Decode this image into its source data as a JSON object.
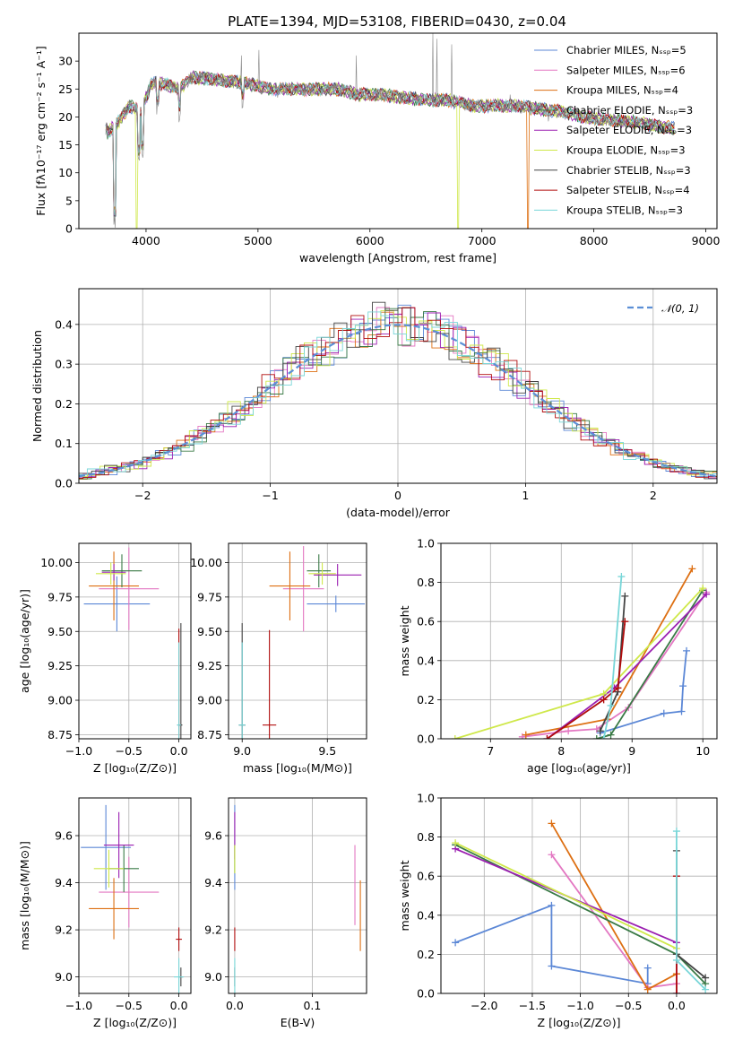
{
  "figure": {
    "title": "PLATE=1394, MJD=53108, FIBERID=0430, z=0.04"
  },
  "colors": {
    "Chabrier MILES": "#5b87d6",
    "Salpeter MILES": "#e377c2",
    "Kroupa MILES": "#dd6f12",
    "Chabrier ELODIE": "#3a7a46",
    "Salpeter ELODIE": "#9b1fb1",
    "Kroupa ELODIE": "#cfe84a",
    "Chabrier STELIB": "#444444",
    "Salpeter STELIB": "#b00c0c",
    "Kroupa STELIB": "#78d6d8",
    "data": "#888888",
    "normal": "#5b8fd6"
  },
  "chart_data": [
    {
      "id": "spectrum",
      "type": "line",
      "xlabel": "wavelength [Angstrom, rest frame]",
      "ylabel": "Flux [fλ10⁻¹⁷ erg cm⁻² s⁻¹ A⁻¹]",
      "xlim": [
        3400,
        9100
      ],
      "ylim": [
        0,
        35
      ],
      "xticks": [
        4000,
        5000,
        6000,
        7000,
        8000,
        9000
      ],
      "yticks": [
        0,
        5,
        10,
        15,
        20,
        25,
        30
      ],
      "legend_position": "top-right",
      "legend": [
        {
          "label": "Chabrier MILES, Nₛₛₚ=5",
          "name": "Chabrier MILES"
        },
        {
          "label": "Salpeter MILES, Nₛₛₚ=6",
          "name": "Salpeter MILES"
        },
        {
          "label": "Kroupa MILES, Nₛₛₚ=4",
          "name": "Kroupa MILES"
        },
        {
          "label": "Chabrier ELODIE, Nₛₛₚ=3",
          "name": "Chabrier ELODIE"
        },
        {
          "label": "Salpeter ELODIE, Nₛₛₚ=3",
          "name": "Salpeter ELODIE"
        },
        {
          "label": "Kroupa ELODIE, Nₛₛₚ=3",
          "name": "Kroupa ELODIE"
        },
        {
          "label": "Chabrier STELIB, Nₛₛₚ=3",
          "name": "Chabrier STELIB"
        },
        {
          "label": "Salpeter STELIB, Nₛₛₚ=4",
          "name": "Salpeter STELIB"
        },
        {
          "label": "Kroupa STELIB, Nₛₛₚ=3",
          "name": "Kroupa STELIB"
        }
      ],
      "continuum": [
        [
          3650,
          17
        ],
        [
          3750,
          19
        ],
        [
          3850,
          22
        ],
        [
          3950,
          21
        ],
        [
          4050,
          26
        ],
        [
          4150,
          26
        ],
        [
          4300,
          25
        ],
        [
          4400,
          27
        ],
        [
          4500,
          27
        ],
        [
          4700,
          26.5
        ],
        [
          4900,
          26
        ],
        [
          5100,
          25
        ],
        [
          5300,
          25
        ],
        [
          5500,
          25
        ],
        [
          5700,
          25
        ],
        [
          5900,
          24
        ],
        [
          6100,
          24
        ],
        [
          6300,
          23.5
        ],
        [
          6500,
          23
        ],
        [
          6700,
          23
        ],
        [
          6900,
          22
        ],
        [
          7100,
          22
        ],
        [
          7300,
          22
        ],
        [
          7500,
          21.5
        ],
        [
          7700,
          21
        ],
        [
          7900,
          20
        ],
        [
          8100,
          19.5
        ],
        [
          8300,
          19.2
        ],
        [
          8500,
          18.6
        ],
        [
          8700,
          18
        ]
      ],
      "absorption_lines": [
        [
          3720,
          0
        ],
        [
          3934,
          11
        ],
        [
          3968,
          12
        ],
        [
          4102,
          20
        ],
        [
          4300,
          19
        ],
        [
          4861,
          21
        ],
        [
          5175,
          22
        ],
        [
          5890,
          22
        ],
        [
          6563,
          21.5
        ],
        [
          7600,
          19
        ]
      ],
      "spikes": [
        [
          4850,
          31
        ],
        [
          5010,
          32
        ],
        [
          5880,
          31
        ],
        [
          6560,
          35
        ],
        [
          6600,
          34
        ],
        [
          6730,
          33
        ],
        [
          7250,
          24
        ]
      ],
      "drops": [
        [
          3915,
          0,
          "Kroupa ELODIE"
        ],
        [
          6790,
          0,
          "Kroupa ELODIE"
        ],
        [
          7415,
          0,
          "Kroupa MILES"
        ]
      ]
    },
    {
      "id": "residuals",
      "type": "histogram",
      "xlabel": "(data-model)/error",
      "ylabel": "Normed distribution",
      "xlim": [
        -2.5,
        2.5
      ],
      "ylim": [
        0,
        0.49
      ],
      "xticks": [
        -2,
        -1,
        0,
        1,
        2
      ],
      "yticks": [
        0.0,
        0.1,
        0.2,
        0.3,
        0.4
      ],
      "bin_width": 0.1,
      "legend_position": "top-right",
      "legend_label": "N(0,1)",
      "legend_math": "𝒩(0, 1)",
      "reference": "normal(0,1)"
    },
    {
      "id": "age_vs_Z",
      "type": "scatter",
      "xlabel": "Z [log₁₀(Z/Z⊙)]",
      "ylabel": "age  [log₁₀(age/yr)]",
      "xlim": [
        -1.0,
        0.12
      ],
      "ylim": [
        8.72,
        10.14
      ],
      "xticks": [
        -1.0,
        -0.5,
        0.0
      ],
      "yticks": [
        8.75,
        9.0,
        9.25,
        9.5,
        9.75,
        10.0
      ],
      "points": [
        {
          "series": "Chabrier MILES",
          "x": -0.62,
          "xerr": 0.33,
          "y": 9.7,
          "yerr": 0.2
        },
        {
          "series": "Salpeter MILES",
          "x": -0.5,
          "xerr": 0.3,
          "y": 9.81,
          "yerr": 0.3
        },
        {
          "series": "Kroupa MILES",
          "x": -0.65,
          "xerr": 0.25,
          "y": 9.83,
          "yerr": 0.25
        },
        {
          "series": "Chabrier ELODIE",
          "x": -0.57,
          "xerr": 0.2,
          "y": 9.94,
          "yerr": 0.12
        },
        {
          "series": "Salpeter ELODIE",
          "x": -0.65,
          "xerr": 0.12,
          "y": 9.93,
          "yerr": 0.06
        },
        {
          "series": "Kroupa ELODIE",
          "x": -0.68,
          "xerr": 0.15,
          "y": 9.92,
          "yerr": 0.08
        },
        {
          "series": "Chabrier STELIB",
          "x": 0.02,
          "xerr": 0.015,
          "y": 8.82,
          "yerr": 0.74
        },
        {
          "series": "Salpeter STELIB",
          "x": 0.0,
          "xerr": 0.01,
          "y": 8.82,
          "yerr": 0.7
        },
        {
          "series": "Kroupa STELIB",
          "x": 0.0,
          "xerr": 0.02,
          "y": 8.82,
          "yerr": 0.6
        }
      ]
    },
    {
      "id": "age_vs_mass",
      "type": "scatter",
      "xlabel": "mass [log₁₀(M/M⊙)]",
      "ylabel": "",
      "xlim": [
        8.92,
        9.73
      ],
      "ylim": [
        8.72,
        10.14
      ],
      "xticks": [
        9.0,
        9.5
      ],
      "yticks": [
        8.75,
        9.0,
        9.25,
        9.5,
        9.75,
        10.0
      ],
      "points": [
        {
          "series": "Chabrier MILES",
          "x": 9.55,
          "xerr": 0.17,
          "y": 9.7,
          "yerr": 0.06
        },
        {
          "series": "Salpeter MILES",
          "x": 9.36,
          "xerr": 0.12,
          "y": 9.81,
          "yerr": 0.31
        },
        {
          "series": "Kroupa MILES",
          "x": 9.28,
          "xerr": 0.12,
          "y": 9.83,
          "yerr": 0.25
        },
        {
          "series": "Chabrier ELODIE",
          "x": 9.45,
          "xerr": 0.07,
          "y": 9.94,
          "yerr": 0.12
        },
        {
          "series": "Salpeter ELODIE",
          "x": 9.56,
          "xerr": 0.14,
          "y": 9.91,
          "yerr": 0.08
        },
        {
          "series": "Kroupa ELODIE",
          "x": 9.47,
          "xerr": 0.08,
          "y": 9.92,
          "yerr": 0.08
        },
        {
          "series": "Chabrier STELIB",
          "x": 9.0,
          "xerr": 0.02,
          "y": 8.82,
          "yerr": 0.74
        },
        {
          "series": "Salpeter STELIB",
          "x": 9.16,
          "xerr": 0.04,
          "y": 8.82,
          "yerr": 0.69
        },
        {
          "series": "Kroupa STELIB",
          "x": 9.0,
          "xerr": 0.02,
          "y": 8.82,
          "yerr": 0.6
        }
      ]
    },
    {
      "id": "weight_vs_age",
      "type": "line",
      "xlabel": "age  [log₁₀(age/yr)]",
      "ylabel": "mass weight",
      "xlim": [
        6.3,
        10.2
      ],
      "ylim": [
        0,
        1.0
      ],
      "xticks": [
        7,
        8,
        9,
        10
      ],
      "yticks": [
        0.0,
        0.2,
        0.4,
        0.6,
        0.8,
        1.0
      ],
      "series": [
        {
          "name": "Chabrier MILES",
          "points": [
            [
              8.55,
              0.03
            ],
            [
              9.45,
              0.13
            ],
            [
              9.7,
              0.14
            ],
            [
              9.72,
              0.27
            ],
            [
              9.77,
              0.45
            ]
          ]
        },
        {
          "name": "Salpeter MILES",
          "points": [
            [
              7.45,
              0.01
            ],
            [
              8.1,
              0.04
            ],
            [
              8.5,
              0.05
            ],
            [
              8.95,
              0.16
            ],
            [
              10.05,
              0.75
            ]
          ]
        },
        {
          "name": "Kroupa MILES",
          "points": [
            [
              7.5,
              0.02
            ],
            [
              8.65,
              0.1
            ],
            [
              9.85,
              0.87
            ]
          ]
        },
        {
          "name": "Chabrier ELODIE",
          "points": [
            [
              8.5,
              0.0
            ],
            [
              8.7,
              0.02
            ],
            [
              10.0,
              0.76
            ]
          ]
        },
        {
          "name": "Salpeter ELODIE",
          "points": [
            [
              7.8,
              0.0
            ],
            [
              8.75,
              0.26
            ],
            [
              10.05,
              0.74
            ]
          ]
        },
        {
          "name": "Kroupa ELODIE",
          "points": [
            [
              6.5,
              0.0
            ],
            [
              8.6,
              0.23
            ],
            [
              10.0,
              0.77
            ]
          ]
        },
        {
          "name": "Chabrier STELIB",
          "points": [
            [
              8.55,
              0.04
            ],
            [
              8.8,
              0.24
            ],
            [
              8.9,
              0.73
            ]
          ]
        },
        {
          "name": "Salpeter STELIB",
          "points": [
            [
              7.8,
              0.0
            ],
            [
              8.6,
              0.2
            ],
            [
              8.8,
              0.26
            ],
            [
              8.9,
              0.6
            ]
          ]
        },
        {
          "name": "Kroupa STELIB",
          "points": [
            [
              8.6,
              0.0
            ],
            [
              8.7,
              0.17
            ],
            [
              8.85,
              0.83
            ]
          ]
        }
      ]
    },
    {
      "id": "mass_vs_Z",
      "type": "scatter",
      "xlabel": "Z [log₁₀(Z/Z⊙)]",
      "ylabel": "mass [log₁₀(M/M⊙)]",
      "xlim": [
        -1.0,
        0.12
      ],
      "ylim": [
        8.93,
        9.76
      ],
      "xticks": [
        -1.0,
        -0.5,
        0.0
      ],
      "yticks": [
        9.0,
        9.2,
        9.4,
        9.6
      ],
      "points": [
        {
          "series": "Chabrier MILES",
          "x": -0.73,
          "xerr": 0.25,
          "y": 9.55,
          "yerr": 0.18
        },
        {
          "series": "Salpeter MILES",
          "x": -0.5,
          "xerr": 0.3,
          "y": 9.36,
          "yerr": 0.15
        },
        {
          "series": "Kroupa MILES",
          "x": -0.65,
          "xerr": 0.25,
          "y": 9.29,
          "yerr": 0.13
        },
        {
          "series": "Chabrier ELODIE",
          "x": -0.55,
          "xerr": 0.15,
          "y": 9.46,
          "yerr": 0.1
        },
        {
          "series": "Salpeter ELODIE",
          "x": -0.6,
          "xerr": 0.15,
          "y": 9.56,
          "yerr": 0.14
        },
        {
          "series": "Kroupa ELODIE",
          "x": -0.7,
          "xerr": 0.15,
          "y": 9.46,
          "yerr": 0.08
        },
        {
          "series": "Chabrier STELIB",
          "x": 0.02,
          "xerr": 0.02,
          "y": 9.0,
          "yerr": 0.04
        },
        {
          "series": "Salpeter STELIB",
          "x": 0.0,
          "xerr": 0.03,
          "y": 9.16,
          "yerr": 0.05
        },
        {
          "series": "Kroupa STELIB",
          "x": 0.0,
          "xerr": 0.05,
          "y": 9.0,
          "yerr": 0.08
        }
      ]
    },
    {
      "id": "mass_vs_ebv",
      "type": "scatter",
      "xlabel": "E(B-V)",
      "ylabel": "",
      "xlim": [
        -0.008,
        0.17
      ],
      "ylim": [
        8.93,
        9.76
      ],
      "xticks": [
        0.0,
        0.1
      ],
      "yticks": [
        9.0,
        9.2,
        9.4,
        9.6
      ],
      "points": [
        {
          "series": "Chabrier MILES",
          "x": 0.0,
          "xerr": 0.0,
          "y": 9.55,
          "yerr": 0.18
        },
        {
          "series": "Salpeter MILES",
          "x": 0.155,
          "xerr": 0.0,
          "y": 9.39,
          "yerr": 0.17
        },
        {
          "series": "Kroupa MILES",
          "x": 0.162,
          "xerr": 0.0,
          "y": 9.26,
          "yerr": 0.15
        },
        {
          "series": "Chabrier ELODIE",
          "x": 0.0,
          "xerr": 0.0,
          "y": 9.5,
          "yerr": 0.06
        },
        {
          "series": "Salpeter ELODIE",
          "x": 0.0,
          "xerr": 0.0,
          "y": 9.6,
          "yerr": 0.1
        },
        {
          "series": "Kroupa ELODIE",
          "x": 0.0,
          "xerr": 0.0,
          "y": 9.5,
          "yerr": 0.06
        },
        {
          "series": "Chabrier STELIB",
          "x": 0.0,
          "xerr": 0.0,
          "y": 9.0,
          "yerr": 0.04
        },
        {
          "series": "Salpeter STELIB",
          "x": 0.0,
          "xerr": 0.0,
          "y": 9.16,
          "yerr": 0.05
        },
        {
          "series": "Kroupa STELIB",
          "x": 0.0,
          "xerr": 0.0,
          "y": 9.0,
          "yerr": 0.08
        }
      ]
    },
    {
      "id": "weight_vs_Z",
      "type": "line",
      "xlabel": "Z [log₁₀(Z/Z⊙)]",
      "ylabel": "mass weight",
      "xlim": [
        -2.45,
        0.42
      ],
      "ylim": [
        0,
        1.0
      ],
      "xticks": [
        -2.0,
        -1.5,
        -1.0,
        -0.5,
        0.0
      ],
      "yticks": [
        0.0,
        0.2,
        0.4,
        0.6,
        0.8,
        1.0
      ],
      "series": [
        {
          "name": "Chabrier MILES",
          "points": [
            [
              -2.3,
              0.26
            ],
            [
              -1.3,
              0.45
            ],
            [
              -1.3,
              0.14
            ],
            [
              -0.3,
              0.05
            ],
            [
              -0.3,
              0.13
            ]
          ]
        },
        {
          "name": "Salpeter MILES",
          "points": [
            [
              -1.3,
              0.71
            ],
            [
              -0.3,
              0.03
            ],
            [
              0.0,
              0.05
            ]
          ]
        },
        {
          "name": "Kroupa MILES",
          "points": [
            [
              -1.3,
              0.87
            ],
            [
              -0.3,
              0.02
            ],
            [
              0.0,
              0.1
            ]
          ]
        },
        {
          "name": "Chabrier ELODIE",
          "points": [
            [
              -2.3,
              0.76
            ],
            [
              0.0,
              0.2
            ],
            [
              0.3,
              0.05
            ]
          ]
        },
        {
          "name": "Salpeter ELODIE",
          "points": [
            [
              -2.3,
              0.74
            ],
            [
              0.0,
              0.26
            ],
            [
              0.0,
              0.0
            ]
          ]
        },
        {
          "name": "Kroupa ELODIE",
          "points": [
            [
              -2.3,
              0.77
            ],
            [
              0.0,
              0.23
            ]
          ]
        },
        {
          "name": "Chabrier STELIB",
          "points": [
            [
              0.0,
              0.73
            ],
            [
              0.0,
              0.2
            ],
            [
              0.3,
              0.08
            ]
          ]
        },
        {
          "name": "Salpeter STELIB",
          "points": [
            [
              0.0,
              0.6
            ],
            [
              0.0,
              0.0
            ]
          ]
        },
        {
          "name": "Kroupa STELIB",
          "points": [
            [
              0.0,
              0.83
            ],
            [
              0.0,
              0.17
            ],
            [
              0.3,
              0.02
            ]
          ]
        }
      ]
    }
  ]
}
